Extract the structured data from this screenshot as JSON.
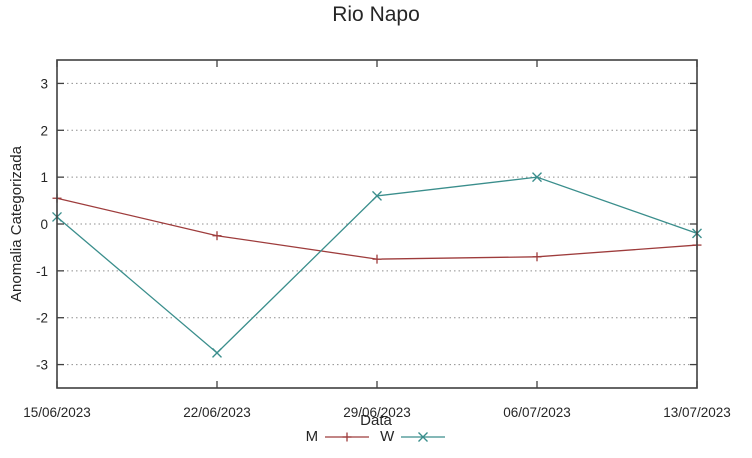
{
  "window": {
    "background": "#ffffff"
  },
  "chart_data": {
    "type": "line",
    "title": "Rio Napo",
    "xlabel": "Data",
    "ylabel": "Anomalia Categorizada",
    "categories": [
      "15/06/2023",
      "22/06/2023",
      "29/06/2023",
      "06/07/2023",
      "13/07/2023"
    ],
    "series": [
      {
        "name": "M",
        "marker": "plus",
        "color": "#9e3c3c",
        "values": [
          0.55,
          -0.25,
          -0.75,
          -0.7,
          -0.45
        ]
      },
      {
        "name": "W",
        "marker": "cross",
        "color": "#3a8e8c",
        "values": [
          0.15,
          -2.75,
          0.6,
          1.0,
          -0.2
        ]
      }
    ],
    "ylim": [
      -3.5,
      3.5
    ],
    "yticks": [
      -3,
      -2,
      -1,
      0,
      1,
      2,
      3
    ],
    "grid": "horizontal dotted",
    "legend_position": "bottom-center",
    "tick_style": "inward mirrored",
    "colors": {
      "axis": "#404040",
      "grid": "#8f8f8f",
      "text": "#262626"
    }
  }
}
